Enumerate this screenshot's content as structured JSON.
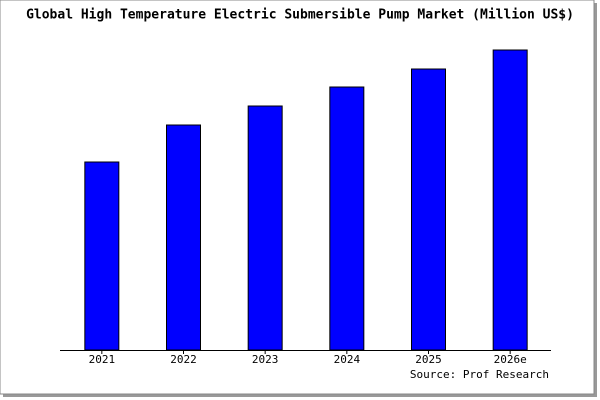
{
  "chart_data": {
    "type": "bar",
    "title": "Global High Temperature Electric Submersible Pump Market (Million US$)",
    "source": "Source: Prof Research",
    "categories": [
      "2021",
      "2022",
      "2023",
      "2024",
      "2025",
      "2026e"
    ],
    "values": [
      188,
      225,
      244,
      263,
      281,
      300
    ],
    "color": "#0000ff"
  }
}
